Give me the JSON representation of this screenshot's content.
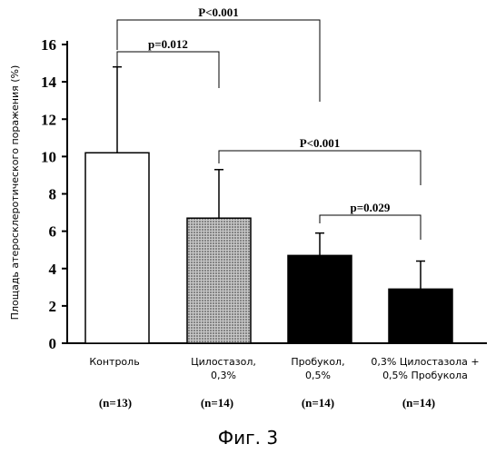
{
  "chart_data": {
    "type": "bar",
    "ylabel": "Площадь атеросклеротического поражения (%)",
    "ylim": [
      0,
      16
    ],
    "yticks": [
      0,
      2,
      4,
      6,
      8,
      10,
      12,
      14,
      16
    ],
    "categories": [
      {
        "lines": [
          "Контроль"
        ],
        "n": "(n=13)",
        "value": 10.2,
        "error": 4.6,
        "fill": "white"
      },
      {
        "lines": [
          "Цилостазол,",
          "0,3%"
        ],
        "n": "(n=14)",
        "value": 6.7,
        "error": 2.6,
        "fill": "dotted"
      },
      {
        "lines": [
          "Пробукол,",
          "0,5%"
        ],
        "n": "(n=14)",
        "value": 4.7,
        "error": 1.2,
        "fill": "black"
      },
      {
        "lines": [
          "0,3% Цилостазола +",
          "0,5% Пробукола"
        ],
        "n": "(n=14)",
        "value": 2.9,
        "error": 1.5,
        "fill": "black"
      }
    ],
    "comparisons": [
      {
        "from": 0,
        "to": 1,
        "label": "p=0.012"
      },
      {
        "from": 0,
        "to": 2,
        "label": "P<0.001"
      },
      {
        "from": 1,
        "to": 3,
        "label": "P<0.001"
      },
      {
        "from": 2,
        "to": 3,
        "label": "p=0.029"
      }
    ]
  },
  "caption": "Фиг. 3"
}
